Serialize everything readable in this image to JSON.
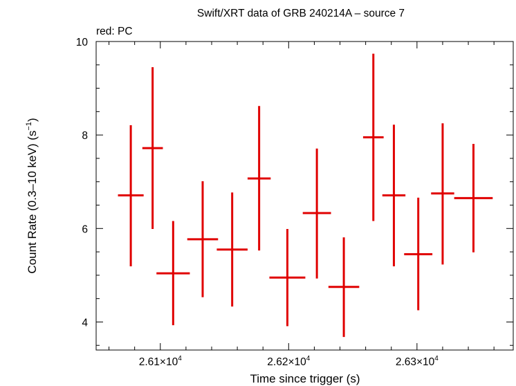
{
  "chart_data": {
    "type": "scatter",
    "title": "Swift/XRT data of GRB 240214A – source 7",
    "subtitle": "red: PC",
    "xlabel": "Time since trigger (s)",
    "ylabel": "Count Rate (0.3–10 keV) (s",
    "ylabel_sup": "−1",
    "ylabel_tail": ")",
    "xlim": [
      26050,
      26375
    ],
    "ylim": [
      3.4,
      10
    ],
    "x_ticks": [
      {
        "value": 26100,
        "mantissa": "2.61×10",
        "exp": "4"
      },
      {
        "value": 26200,
        "mantissa": "2.62×10",
        "exp": "4"
      },
      {
        "value": 26300,
        "mantissa": "2.63×10",
        "exp": "4"
      }
    ],
    "y_ticks": [
      {
        "value": 4,
        "label": "4"
      },
      {
        "value": 6,
        "label": "6"
      },
      {
        "value": 8,
        "label": "8"
      },
      {
        "value": 10,
        "label": "10"
      }
    ],
    "series": [
      {
        "color": "#e00000",
        "points": [
          {
            "x": 26077,
            "xerr": 10,
            "y": 6.71,
            "ylo": 5.19,
            "yhi": 8.21
          },
          {
            "x": 26094,
            "xerr": 8,
            "y": 7.72,
            "ylo": 5.99,
            "yhi": 9.45
          },
          {
            "x": 26110,
            "xerr": 13,
            "y": 5.04,
            "ylo": 3.93,
            "yhi": 6.16
          },
          {
            "x": 26133,
            "xerr": 12,
            "y": 5.77,
            "ylo": 4.53,
            "yhi": 7.01
          },
          {
            "x": 26156,
            "xerr": 12,
            "y": 5.55,
            "ylo": 4.33,
            "yhi": 6.77
          },
          {
            "x": 26177,
            "xerr": 9,
            "y": 7.07,
            "ylo": 5.53,
            "yhi": 8.62
          },
          {
            "x": 26199,
            "xerr": 14,
            "y": 4.95,
            "ylo": 3.91,
            "yhi": 5.99
          },
          {
            "x": 26222,
            "xerr": 11,
            "y": 6.33,
            "ylo": 4.93,
            "yhi": 7.71
          },
          {
            "x": 26243,
            "xerr": 12,
            "y": 4.75,
            "ylo": 3.68,
            "yhi": 5.81
          },
          {
            "x": 26266,
            "xerr": 8,
            "y": 7.95,
            "ylo": 6.16,
            "yhi": 9.74
          },
          {
            "x": 26282,
            "xerr": 9,
            "y": 6.71,
            "ylo": 5.19,
            "yhi": 8.22
          },
          {
            "x": 26301,
            "xerr": 11,
            "y": 5.45,
            "ylo": 4.25,
            "yhi": 6.66
          },
          {
            "x": 26320,
            "xerr": 9,
            "y": 6.75,
            "ylo": 5.23,
            "yhi": 8.25
          },
          {
            "x": 26344,
            "xerr": 15,
            "y": 6.65,
            "ylo": 5.49,
            "yhi": 7.81
          }
        ]
      }
    ]
  }
}
